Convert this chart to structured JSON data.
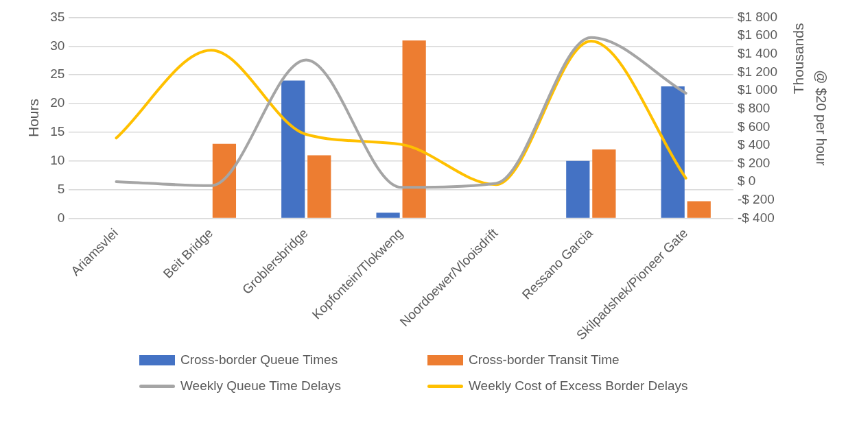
{
  "chart_data": {
    "type": "bar",
    "categories": [
      "Ariamsvlei",
      "Beit Bridge",
      "Groblersbridge",
      "Kopfontein/Tlokweng",
      "Noordoewer/Vlooisdrift",
      "Ressano Garcia",
      "Skilpadshek/Pioneer Gate"
    ],
    "series": [
      {
        "name": "Cross-border Queue Times",
        "color": "#4472c4",
        "values": [
          null,
          null,
          24,
          1,
          null,
          10,
          23
        ]
      },
      {
        "name": "Cross-border Transit Time",
        "color": "#ed7d31",
        "values": [
          null,
          13,
          11,
          31,
          null,
          12,
          3
        ]
      },
      {
        "name": "Weekly Queue Time Delays",
        "type": "line",
        "color": "#a5a5a5",
        "values": [
          6.4,
          5.7,
          27.6,
          5.4,
          6.1,
          31.5,
          21.8
        ]
      },
      {
        "name": "Weekly Cost of Excess Border Delays",
        "type": "line",
        "axis": "y2",
        "color": "#ffc000",
        "values": [
          480,
          1440,
          520,
          410,
          -30,
          1540,
          40
        ]
      }
    ],
    "ylabel": "Hours",
    "y2label": "@ $20 per hour",
    "annotations": [
      "Thousands"
    ],
    "ylim": [
      0,
      35
    ],
    "yticks": [
      0,
      5,
      10,
      15,
      20,
      25,
      30,
      35
    ],
    "y2lim": [
      -400,
      1800
    ],
    "y2ticks": [
      {
        "value": -400,
        "label": "-$ 400"
      },
      {
        "value": -200,
        "label": "-$ 200"
      },
      {
        "value": 0,
        "label": "$ 0"
      },
      {
        "value": 200,
        "label": "$ 200"
      },
      {
        "value": 400,
        "label": "$ 400"
      },
      {
        "value": 600,
        "label": "$ 600"
      },
      {
        "value": 800,
        "label": "$ 800"
      },
      {
        "value": 1000,
        "label": "$1 000"
      },
      {
        "value": 1200,
        "label": "$1 200"
      },
      {
        "value": 1400,
        "label": "$1 400"
      },
      {
        "value": 1600,
        "label": "$1 600"
      },
      {
        "value": 1800,
        "label": "$1 800"
      }
    ],
    "grid": "y",
    "legend": "bottom",
    "marker": "none",
    "line_style": "solid"
  }
}
